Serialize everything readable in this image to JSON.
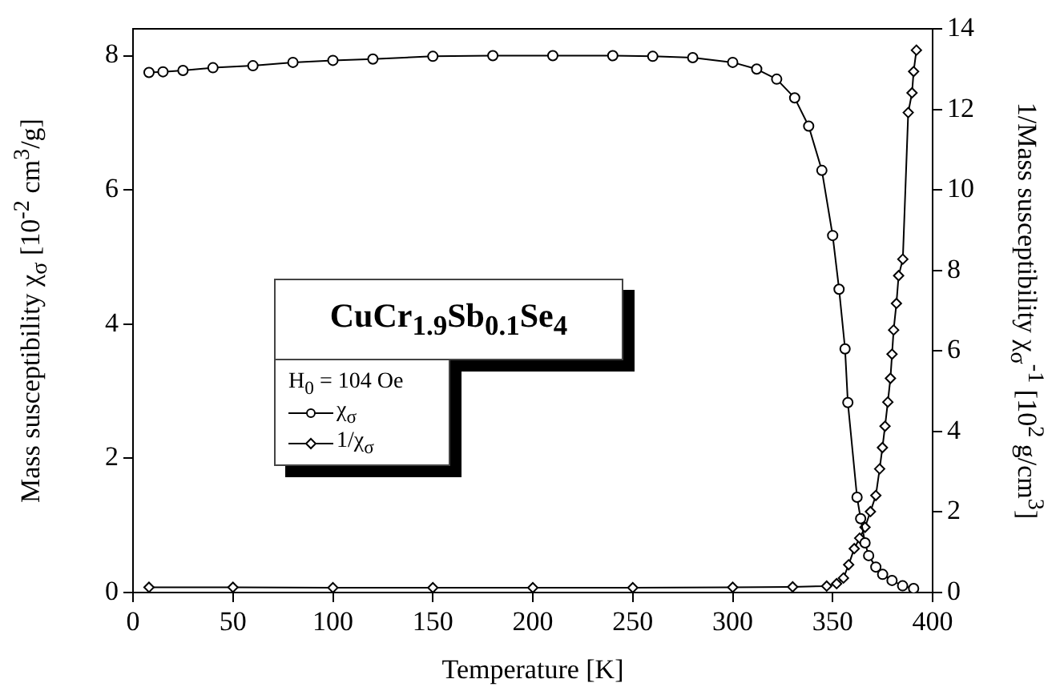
{
  "chart_data": {
    "type": "line",
    "xlabel": "Temperature [K]",
    "ylabel": "Mass susceptibility χ$_{σ}$ [10$^{-2}$ cm$^{3}$/g]",
    "y2label": "1/Mass susceptibility  χ$_{σ}$$^{-1}$ [10$^{2}$ g/cm$^{3}$]",
    "legend_title": "CuCr$_{1.9}$Sb$_{0.1}$Se$_{4}$",
    "annotations": [
      "H$_{0}$ = 104 Oe"
    ],
    "xlim": [
      0,
      400
    ],
    "xticks": [
      0,
      50,
      100,
      150,
      200,
      250,
      300,
      350,
      400
    ],
    "ylim": [
      0,
      8.4
    ],
    "yticks": [
      0,
      2,
      4,
      6,
      8
    ],
    "y2lim": [
      0,
      14
    ],
    "y2ticks": [
      0,
      2,
      4,
      6,
      8,
      10,
      12,
      14
    ],
    "grid": false,
    "legend": "left",
    "line_style": "solid",
    "series": [
      {
        "name": "χ$_{σ}$",
        "color": "#000000",
        "marker": "circle",
        "x": [
          8,
          15,
          25,
          40,
          60,
          80,
          100,
          120,
          150,
          180,
          210,
          240,
          260,
          280,
          300,
          312,
          322,
          331,
          338,
          344.6,
          350,
          353.2,
          356.2,
          357.6,
          362.2,
          364,
          366.2,
          368,
          371.6,
          375,
          379.7,
          385,
          390.5
        ],
        "values": [
          7.75,
          7.76,
          7.78,
          7.82,
          7.85,
          7.9,
          7.93,
          7.95,
          7.99,
          8.0,
          8.0,
          8.0,
          7.99,
          7.97,
          7.9,
          7.8,
          7.65,
          7.37,
          6.95,
          6.29,
          5.32,
          4.52,
          3.63,
          2.83,
          1.42,
          1.1,
          0.74,
          0.55,
          0.38,
          0.27,
          0.18,
          0.1,
          0.06
        ]
      },
      {
        "name": "1/χ$_{σ}$",
        "color": "#000000",
        "marker": "diamond",
        "axis": "y2",
        "x": [
          8,
          50,
          100,
          150,
          200,
          250,
          300,
          330,
          347,
          352,
          355.4,
          358,
          360.8,
          363.5,
          366.2,
          368.9,
          371.6,
          373.5,
          374.9,
          376.2,
          377.6,
          378.9,
          379.7,
          380.5,
          381.9,
          383,
          385.1,
          387.8,
          389.7,
          390.5,
          391.9
        ],
        "values": [
          0.13,
          0.13,
          0.12,
          0.12,
          0.12,
          0.12,
          0.13,
          0.14,
          0.16,
          0.22,
          0.36,
          0.69,
          1.09,
          1.35,
          1.62,
          2.01,
          2.41,
          3.07,
          3.6,
          4.13,
          4.73,
          5.32,
          5.92,
          6.52,
          7.18,
          7.87,
          8.28,
          11.92,
          12.41,
          12.94,
          13.47
        ]
      }
    ]
  }
}
